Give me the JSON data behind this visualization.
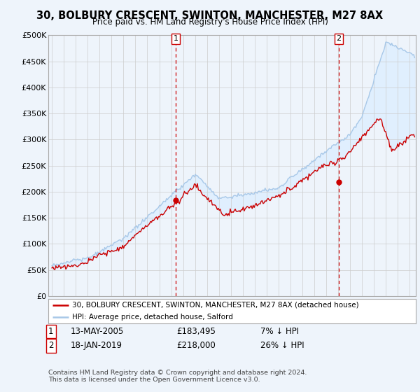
{
  "title": "30, BOLBURY CRESCENT, SWINTON, MANCHESTER, M27 8AX",
  "subtitle": "Price paid vs. HM Land Registry's House Price Index (HPI)",
  "ylim": [
    0,
    500000
  ],
  "yticks": [
    0,
    50000,
    100000,
    150000,
    200000,
    250000,
    300000,
    350000,
    400000,
    450000,
    500000
  ],
  "ytick_labels": [
    "£0",
    "£50K",
    "£100K",
    "£150K",
    "£200K",
    "£250K",
    "£300K",
    "£350K",
    "£400K",
    "£450K",
    "£500K"
  ],
  "sale1_date_num": 2005.37,
  "sale1_price": 183495,
  "sale2_date_num": 2019.05,
  "sale2_price": 218000,
  "legend_line1": "30, BOLBURY CRESCENT, SWINTON, MANCHESTER, M27 8AX (detached house)",
  "legend_line2": "HPI: Average price, detached house, Salford",
  "table_row1": [
    "1",
    "13-MAY-2005",
    "£183,495",
    "7% ↓ HPI"
  ],
  "table_row2": [
    "2",
    "18-JAN-2019",
    "£218,000",
    "26% ↓ HPI"
  ],
  "footer": "Contains HM Land Registry data © Crown copyright and database right 2024.\nThis data is licensed under the Open Government Licence v3.0.",
  "hpi_color": "#a8c8e8",
  "price_color": "#cc0000",
  "fill_color": "#ddeeff",
  "bg_color": "#eef4fb",
  "grid_color": "#cccccc",
  "xlim_left": 1994.7,
  "xlim_right": 2025.5
}
